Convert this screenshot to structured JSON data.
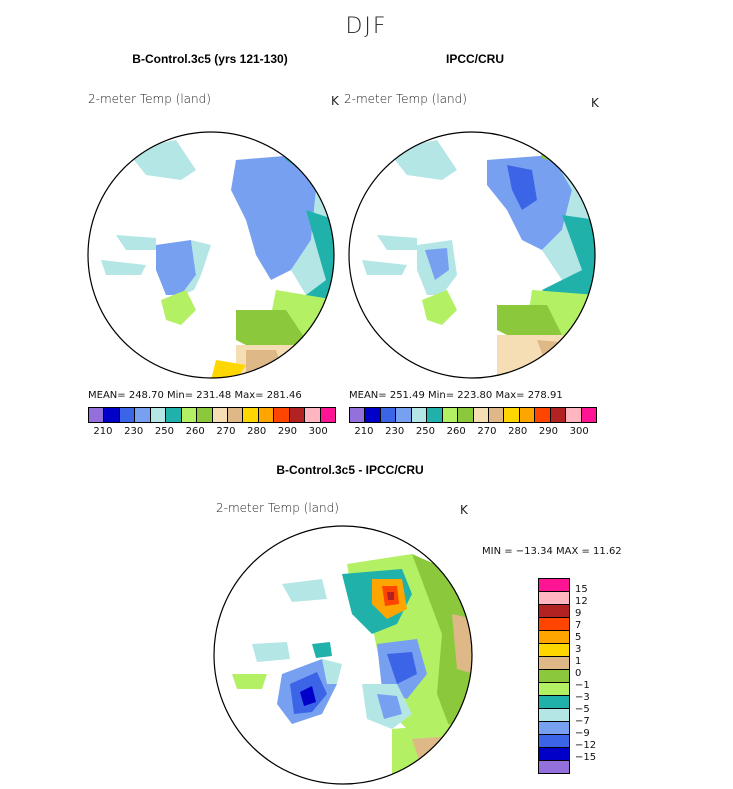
{
  "season": "DJF",
  "panels": {
    "model": {
      "title": "B-Control.3c5 (yrs 121-130)",
      "variable": "2-meter Temp (land)",
      "units": "K",
      "stats": "MEAN= 248.70   Min= 231.48   Max= 281.46"
    },
    "obs": {
      "title": "IPCC/CRU",
      "variable": "2-meter Temp (land)",
      "units": "K",
      "stats": "MEAN= 251.49   Min= 223.80   Max= 278.91"
    },
    "diff": {
      "title": "B-Control.3c5 - IPCC/CRU",
      "variable": "2-meter Temp (land)",
      "units": "K",
      "minmax": "MIN = −13.34 MAX =  11.62"
    }
  },
  "top_colorbar": {
    "colors": [
      "#9370db",
      "#0000c8",
      "#3c64e6",
      "#78a0f0",
      "#b4e6e6",
      "#20b2aa",
      "#b4f064",
      "#8cc83c",
      "#f5deb3",
      "#deb887",
      "#ffd700",
      "#ffa500",
      "#ff4500",
      "#b22222",
      "#ffb6c1",
      "#ff1493"
    ],
    "tick_labels": [
      "210",
      "230",
      "250",
      "260",
      "270",
      "280",
      "290",
      "300"
    ]
  },
  "diff_legend": {
    "colors": [
      "#ff1493",
      "#ffb6c1",
      "#b22222",
      "#ff4500",
      "#ffa500",
      "#ffd700",
      "#deb887",
      "#8cc83c",
      "#b4f064",
      "#20b2aa",
      "#b4e6e6",
      "#78a0f0",
      "#3c64e6",
      "#0000c8",
      "#9370db"
    ],
    "labels": [
      "15",
      "12",
      "9",
      "7",
      "5",
      "3",
      "1",
      "0",
      "−1",
      "−3",
      "−5",
      "−7",
      "−9",
      "−12",
      "−15"
    ]
  }
}
